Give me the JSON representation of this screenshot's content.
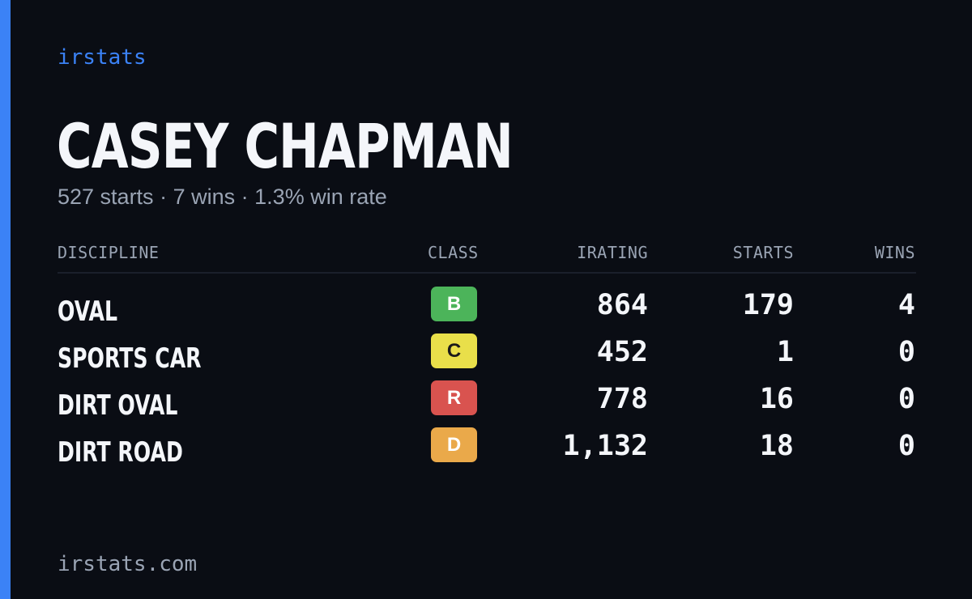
{
  "brand": "irstats",
  "driver": {
    "name": "CASEY CHAPMAN",
    "starts": "527 starts",
    "wins": "7 wins",
    "win_rate": "1.3% win rate",
    "separator": "·"
  },
  "table": {
    "headers": {
      "discipline": "DISCIPLINE",
      "class": "CLASS",
      "irating": "IRATING",
      "starts": "STARTS",
      "wins": "WINS"
    },
    "rows": [
      {
        "discipline": "OVAL",
        "class": "B",
        "class_color": "#4cb45a",
        "class_text_color": "#ffffff",
        "irating": "864",
        "starts": "179",
        "wins": "4"
      },
      {
        "discipline": "SPORTS CAR",
        "class": "C",
        "class_color": "#e9df4a",
        "class_text_color": "#1a1a1a",
        "irating": "452",
        "starts": "1",
        "wins": "0"
      },
      {
        "discipline": "DIRT OVAL",
        "class": "R",
        "class_color": "#d9534f",
        "class_text_color": "#ffffff",
        "irating": "778",
        "starts": "16",
        "wins": "0"
      },
      {
        "discipline": "DIRT ROAD",
        "class": "D",
        "class_color": "#eaa94a",
        "class_text_color": "#ffffff",
        "irating": "1,132",
        "starts": "18",
        "wins": "0"
      }
    ]
  },
  "footer_url": "irstats.com",
  "colors": {
    "background": "#0a0d14",
    "accent": "#3b82f6",
    "text_primary": "#f4f6fa",
    "text_muted": "#9aa4b4"
  }
}
